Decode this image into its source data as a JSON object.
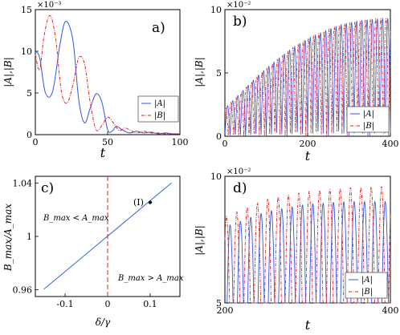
{
  "chart_data": [
    {
      "panel": "a)",
      "type": "line",
      "xlabel": "t",
      "ylabel": "|A|,|B|",
      "xlim": [
        0,
        100
      ],
      "ylim": [
        0,
        15
      ],
      "y_exponent": "×10⁻³",
      "xticks": [
        "0",
        "50",
        "100"
      ],
      "yticks": [
        "0",
        "5",
        "10",
        "15"
      ],
      "legend": {
        "position": "right",
        "entries": [
          "|A|",
          "|B|"
        ]
      },
      "series": [
        {
          "name": "|A|",
          "color": "#3355dd",
          "style": "solid",
          "x": [
            0,
            3,
            7,
            12,
            17,
            21,
            26,
            30,
            34,
            38,
            42,
            46,
            50,
            53,
            56,
            60,
            65,
            70,
            75,
            80,
            85,
            90,
            95,
            100
          ],
          "y": [
            10,
            9.2,
            5,
            5.2,
            10.8,
            13.6,
            11.3,
            4.2,
            1.4,
            3.2,
            4.9,
            3.9,
            0.6,
            0.4,
            1,
            0.6,
            0.2,
            0.4,
            0.2,
            0.3,
            0.1,
            0.2,
            0.1,
            0.1
          ]
        },
        {
          "name": "|B|",
          "color": "#dd2222",
          "style": "dashdot",
          "x": [
            0,
            3,
            6,
            10,
            14,
            18,
            22,
            26,
            30,
            34,
            38,
            42,
            46,
            50,
            54,
            58,
            62,
            66,
            70,
            75,
            80,
            85,
            90,
            95,
            100
          ],
          "y": [
            9.6,
            7.8,
            11.8,
            14.3,
            11.6,
            5.2,
            3.8,
            6,
            9.2,
            8.5,
            3.8,
            0.6,
            1.1,
            2.1,
            1.4,
            0.5,
            0.8,
            0.5,
            0.2,
            0.4,
            0.2,
            0.2,
            0.1,
            0.1,
            0.1
          ]
        }
      ]
    },
    {
      "panel": "b)",
      "type": "line",
      "xlabel": "t",
      "ylabel": "|A|,|B|",
      "xlim": [
        0,
        400
      ],
      "ylim": [
        0,
        10
      ],
      "y_exponent": "×10⁻²",
      "xticks": [
        "0",
        "200",
        "400"
      ],
      "yticks": [
        "0",
        "5",
        "10"
      ],
      "legend": {
        "position": "bottom-right",
        "entries": [
          "|A|",
          "|B|"
        ]
      },
      "oscillation_period": 12.5,
      "envelope": {
        "x": [
          0,
          40,
          80,
          120,
          160,
          200,
          240,
          280,
          320,
          360,
          400
        ],
        "y": [
          2.2,
          3.5,
          4.8,
          5.9,
          6.9,
          7.7,
          8.3,
          8.8,
          9.1,
          9.25,
          9.3
        ]
      },
      "series": [
        {
          "name": "|A|",
          "color": "#3355dd",
          "style": "solid"
        },
        {
          "name": "|B|",
          "color": "#dd2222",
          "style": "dashdot"
        }
      ]
    },
    {
      "panel": "c)",
      "type": "line",
      "xlabel": "δ/γ",
      "ylabel": "B_max/A_max",
      "xlim": [
        -0.17,
        0.17
      ],
      "ylim": [
        0.955,
        1.045
      ],
      "xticks": [
        "-0.1",
        "0",
        "0.1"
      ],
      "yticks": [
        "0.96",
        "1",
        "1.04"
      ],
      "series": [
        {
          "name": "",
          "color": "#3366cc",
          "style": "solid",
          "x": [
            -0.15,
            0.15
          ],
          "y": [
            0.9605,
            1.04
          ]
        }
      ],
      "vline": {
        "x": 0,
        "color": "#dd2222",
        "style": "dashed"
      },
      "point": {
        "x": 0.1,
        "y": 1.0255,
        "label": "(I)"
      },
      "annotations": [
        "B_max < A_max",
        "B_max > A_max"
      ]
    },
    {
      "panel": "d)",
      "type": "line",
      "xlabel": "t",
      "ylabel": "|A|,|B|",
      "xlim": [
        200,
        400
      ],
      "ylim": [
        5,
        10
      ],
      "y_exponent": "×10⁻²",
      "xticks": [
        "200",
        "400"
      ],
      "yticks": [
        "5",
        "10"
      ],
      "legend": {
        "position": "bottom-right",
        "entries": [
          "|A|",
          "|B|"
        ]
      },
      "oscillation_period": 12.5,
      "series": [
        {
          "name": "|A|",
          "color": "#3355dd",
          "style": "solid",
          "peak_envelope": {
            "x": [
              200,
              250,
              300,
              350,
              400
            ],
            "y": [
              8.0,
              8.6,
              8.9,
              9.0,
              9.0
            ]
          }
        },
        {
          "name": "|B|",
          "color": "#dd2222",
          "style": "dashdot",
          "peak_envelope": {
            "x": [
              200,
              250,
              300,
              350,
              400
            ],
            "y": [
              8.4,
              9.1,
              9.4,
              9.55,
              9.6
            ]
          }
        }
      ]
    }
  ]
}
